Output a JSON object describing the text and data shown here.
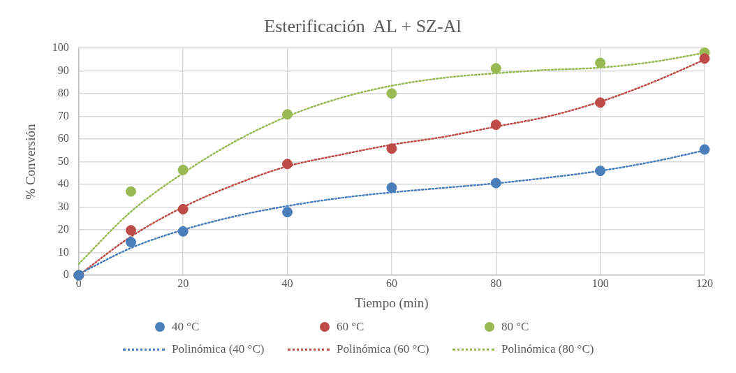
{
  "chart_data": {
    "type": "scatter",
    "title": "Esterificación  AL + SZ-Al",
    "xlabel": "Tiempo (min)",
    "ylabel": "% Conversión",
    "xlim": [
      0,
      120
    ],
    "xticks": [
      0,
      20,
      40,
      60,
      80,
      100,
      120
    ],
    "ylim": [
      0,
      100
    ],
    "yticks": [
      0,
      10,
      20,
      30,
      40,
      50,
      60,
      70,
      80,
      90,
      100
    ],
    "grid": true,
    "legend": "bottom",
    "series": [
      {
        "name": "40 °C",
        "marker": "circle",
        "color": "#4a7ebb",
        "x": [
          0,
          10,
          20,
          40,
          60,
          80,
          100,
          120
        ],
        "values": [
          0,
          14.6,
          19.3,
          27.8,
          38.6,
          40.6,
          46,
          55.4
        ]
      },
      {
        "name": "60 °C",
        "marker": "circle",
        "color": "#be4b48",
        "x": [
          0,
          10,
          20,
          40,
          60,
          80,
          100,
          120
        ],
        "values": [
          0,
          19.8,
          29.1,
          49,
          55.8,
          66.3,
          76.1,
          95.5
        ]
      },
      {
        "name": "80 °C",
        "marker": "circle",
        "color": "#98b954",
        "x": [
          0,
          10,
          20,
          40,
          60,
          80,
          100,
          120
        ],
        "values": [
          0,
          36.9,
          46.4,
          70.9,
          80.1,
          91.2,
          93.6,
          98.1
        ]
      },
      {
        "name": "Polinómica (40 °C)",
        "type": "line",
        "marker": "none",
        "line_style": "dotted",
        "color": "#4a7ebb",
        "x": [
          0,
          10,
          20,
          30,
          40,
          50,
          60,
          70,
          80,
          90,
          100,
          110,
          120
        ],
        "values": [
          0.5,
          12,
          20,
          26,
          30.5,
          34,
          36.5,
          38.5,
          40.5,
          43,
          46,
          50,
          55
        ]
      },
      {
        "name": "Polinómica (60 °C)",
        "type": "line",
        "marker": "none",
        "line_style": "dotted",
        "color": "#be4b48",
        "x": [
          0,
          10,
          20,
          30,
          40,
          50,
          60,
          70,
          80,
          90,
          100,
          110,
          120
        ],
        "values": [
          0,
          17,
          30,
          40,
          48,
          53,
          57.5,
          61,
          65.5,
          70,
          76.5,
          85,
          95
        ]
      },
      {
        "name": "Polinómica (80 °C)",
        "type": "line",
        "marker": "none",
        "line_style": "dotted",
        "color": "#98b954",
        "x": [
          0,
          10,
          20,
          30,
          40,
          50,
          60,
          70,
          80,
          90,
          100,
          110,
          120
        ],
        "values": [
          5,
          28,
          45,
          59,
          70,
          78,
          83.5,
          87,
          89,
          90.5,
          91.5,
          94,
          98
        ]
      }
    ]
  }
}
